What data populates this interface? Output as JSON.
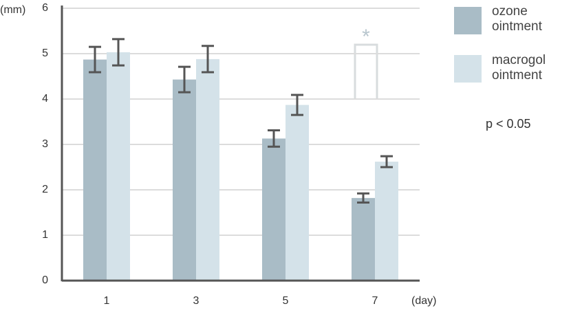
{
  "chart_data": {
    "type": "bar",
    "y_unit": "(mm)",
    "x_unit": "(day)",
    "categories": [
      "1",
      "3",
      "5",
      "7"
    ],
    "series": [
      {
        "name": "ozone ointment",
        "color": "#a9bcc6",
        "values": [
          4.87,
          4.43,
          3.13,
          1.82
        ],
        "errors": [
          0.28,
          0.28,
          0.18,
          0.1
        ]
      },
      {
        "name": "macrogol ointment",
        "color": "#d4e2e9",
        "values": [
          5.03,
          4.88,
          3.87,
          2.62
        ],
        "errors": [
          0.29,
          0.29,
          0.22,
          0.12
        ]
      }
    ],
    "ylim": [
      0,
      6
    ],
    "yticks": [
      0,
      1,
      2,
      3,
      4,
      5,
      6
    ],
    "grid": true,
    "annotation": "*",
    "note": "p < 0.05"
  }
}
